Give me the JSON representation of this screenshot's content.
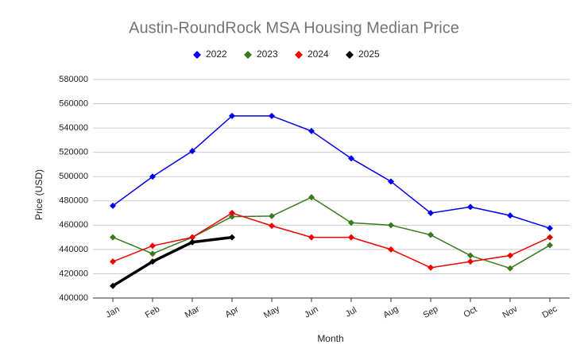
{
  "chart_data": {
    "type": "line",
    "title": "Austin-RoundRock MSA Housing Median Price",
    "x_label": "Month",
    "y_label": "Price (USD)",
    "categories": [
      "Jan",
      "Feb",
      "Mar",
      "Apr",
      "May",
      "Jun",
      "Jul",
      "Aug",
      "Sep",
      "Oct",
      "Nov",
      "Dec"
    ],
    "series": [
      {
        "name": "2022",
        "color": "#0000ee",
        "width": 1.5,
        "values": [
          476000,
          500000,
          521000,
          550000,
          550000,
          537500,
          515000,
          496000,
          470000,
          475000,
          468000,
          457500
        ]
      },
      {
        "name": "2023",
        "color": "#3a7a1e",
        "width": 1.5,
        "values": [
          450000,
          436500,
          450000,
          467000,
          467500,
          483000,
          462000,
          460000,
          452000,
          435000,
          424500,
          443500
        ]
      },
      {
        "name": "2024",
        "color": "#ee0000",
        "width": 1.5,
        "values": [
          430000,
          443000,
          450000,
          470000,
          459500,
          450000,
          450000,
          440000,
          425000,
          430000,
          435000,
          450000
        ]
      },
      {
        "name": "2025",
        "color": "#000000",
        "width": 3.5,
        "values": [
          410000,
          430000,
          446000,
          450000,
          null,
          null,
          null,
          null,
          null,
          null,
          null,
          null
        ]
      }
    ],
    "ylim": [
      400000,
      580000
    ],
    "yticks": [
      400000,
      420000,
      440000,
      460000,
      480000,
      500000,
      520000,
      540000,
      560000,
      580000
    ],
    "grid": true,
    "legend": "top"
  }
}
